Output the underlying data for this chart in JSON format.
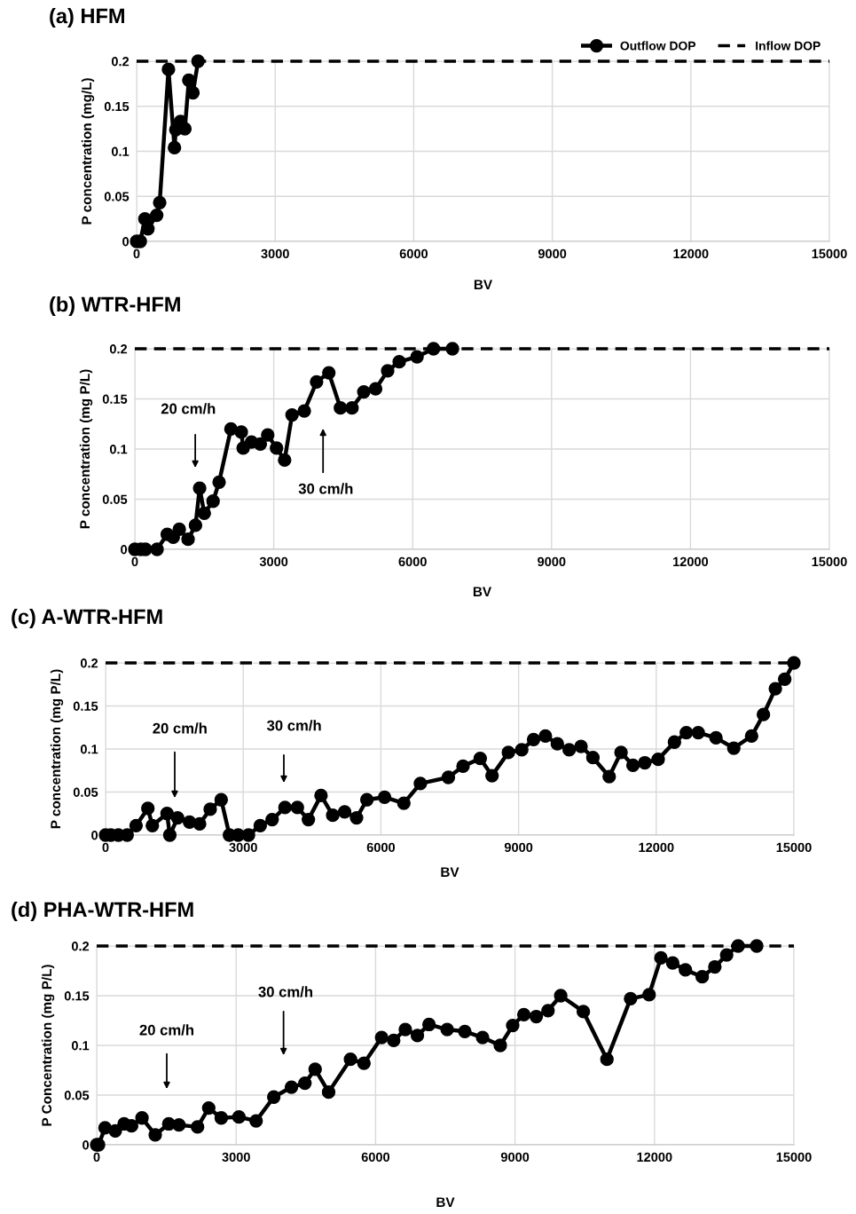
{
  "chart_data": [
    {
      "type": "line",
      "title": "(a) HFM",
      "xlabel": "BV",
      "ylabel": "P concentration (mg/L)",
      "xlim": [
        0,
        15000
      ],
      "xticks": [
        0,
        3000,
        6000,
        9000,
        12000,
        15000
      ],
      "ylim": [
        0,
        0.2
      ],
      "yticks": [
        0,
        0.05,
        0.1,
        0.15,
        0.2
      ],
      "grid": true,
      "legend": "top right",
      "series": [
        {
          "name": "Outflow DOP",
          "color": "#000000",
          "marker": "circle",
          "line_style": "solid",
          "x": [
            0,
            80,
            180,
            245,
            435,
            500,
            690,
            820,
            850,
            950,
            1045,
            1130,
            1220,
            1330
          ],
          "values": [
            0,
            0,
            0.025,
            0.014,
            0.029,
            0.043,
            0.191,
            0.104,
            0.124,
            0.133,
            0.125,
            0.179,
            0.165,
            0.2
          ]
        },
        {
          "name": "Inflow DOP",
          "color": "#000000",
          "marker": "none",
          "line_style": "dashed",
          "x": [
            0,
            15000
          ],
          "values": [
            0.2,
            0.2
          ]
        }
      ]
    },
    {
      "type": "line",
      "title": "(b) WTR-HFM",
      "xlabel": "BV",
      "ylabel": "P concentration (mg P/L)",
      "xlim": [
        0,
        15000
      ],
      "xticks": [
        0,
        3000,
        6000,
        9000,
        12000,
        15000
      ],
      "ylim": [
        0,
        0.2
      ],
      "yticks": [
        0,
        0.05,
        0.1,
        0.15,
        0.2
      ],
      "grid": true,
      "annotations": [
        "20 cm/h",
        "30 cm/h"
      ],
      "series": [
        {
          "color": "#000000",
          "marker": "circle",
          "line_style": "solid",
          "x": [
            0,
            130,
            230,
            480,
            700,
            830,
            960,
            1150,
            1310,
            1400,
            1500,
            1690,
            1820,
            2075,
            2300,
            2340,
            2520,
            2710,
            2870,
            3060,
            3235,
            3395,
            3660,
            3925,
            4190,
            4440,
            4690,
            4945,
            5200,
            5460,
            5710,
            6095,
            6450,
            6860
          ],
          "values": [
            0,
            0,
            0,
            0,
            0.015,
            0.012,
            0.02,
            0.01,
            0.024,
            0.061,
            0.036,
            0.048,
            0.067,
            0.12,
            0.117,
            0.101,
            0.107,
            0.105,
            0.114,
            0.101,
            0.089,
            0.134,
            0.138,
            0.167,
            0.176,
            0.141,
            0.141,
            0.157,
            0.16,
            0.178,
            0.187,
            0.192,
            0.2,
            0.2
          ]
        },
        {
          "color": "#000000",
          "marker": "none",
          "line_style": "dashed",
          "x": [
            0,
            15000
          ],
          "values": [
            0.2,
            0.2
          ]
        }
      ]
    },
    {
      "type": "line",
      "title": "(c) A-WTR-HFM",
      "xlabel": "BV",
      "ylabel": "P concentration (mg P/L)",
      "xlim": [
        0,
        15000
      ],
      "xticks": [
        0,
        3000,
        6000,
        9000,
        12000,
        15000
      ],
      "ylim": [
        0,
        0.2
      ],
      "yticks": [
        0,
        0.05,
        0.1,
        0.15,
        0.2
      ],
      "grid": true,
      "annotations": [
        "20 cm/h",
        "30 cm/h"
      ],
      "series": [
        {
          "color": "#000000",
          "marker": "circle",
          "line_style": "solid",
          "x": [
            0,
            115,
            280,
            470,
            665,
            922,
            1020,
            1340,
            1400,
            1570,
            1830,
            2050,
            2280,
            2520,
            2700,
            2890,
            3115,
            3370,
            3630,
            3910,
            4180,
            4420,
            4695,
            4950,
            5210,
            5470,
            5695,
            6080,
            6500,
            6860,
            7470,
            7790,
            8164,
            8422,
            8778,
            9069,
            9327,
            9585,
            9845,
            10103,
            10361,
            10620,
            10975,
            11233,
            11493,
            11751,
            12042,
            12397,
            12656,
            12915,
            13302,
            13690,
            14078,
            14336,
            14596,
            14800,
            15000
          ],
          "values": [
            0,
            0,
            0,
            0,
            0.011,
            0.031,
            0.011,
            0.025,
            0,
            0.02,
            0.015,
            0.013,
            0.03,
            0.041,
            0,
            0,
            0,
            0.011,
            0.018,
            0.032,
            0.032,
            0.018,
            0.046,
            0.023,
            0.027,
            0.02,
            0.041,
            0.044,
            0.037,
            0.06,
            0.067,
            0.08,
            0.089,
            0.069,
            0.096,
            0.099,
            0.111,
            0.115,
            0.106,
            0.099,
            0.103,
            0.09,
            0.068,
            0.096,
            0.081,
            0.084,
            0.088,
            0.108,
            0.119,
            0.119,
            0.113,
            0.101,
            0.115,
            0.14,
            0.17,
            0.181,
            0.2
          ]
        },
        {
          "color": "#000000",
          "marker": "none",
          "line_style": "dashed",
          "x": [
            0,
            15000
          ],
          "values": [
            0.2,
            0.2
          ]
        }
      ]
    },
    {
      "type": "line",
      "title": "(d) PHA-WTR-HFM",
      "xlabel": "BV",
      "ylabel": "P Concentration (mg P/L)",
      "xlim": [
        0,
        15000
      ],
      "xticks": [
        0,
        3000,
        6000,
        9000,
        12000,
        15000
      ],
      "ylim": [
        0,
        0.2
      ],
      "yticks": [
        0,
        0.05,
        0.1,
        0.15,
        0.2
      ],
      "grid": true,
      "annotations": [
        "20 cm/h",
        "30 cm/h"
      ],
      "series": [
        {
          "color": "#000000",
          "marker": "circle",
          "line_style": "solid",
          "x": [
            0,
            40,
            180,
            400,
            590,
            750,
            975,
            1260,
            1550,
            1770,
            2170,
            2410,
            2680,
            3060,
            3430,
            3810,
            4190,
            4480,
            4700,
            4990,
            5460,
            5750,
            6130,
            6390,
            6640,
            6900,
            7150,
            7540,
            7920,
            8302,
            8683,
            8950,
            9190,
            9457,
            9710,
            9983,
            10470,
            10978,
            11486,
            11885,
            12139,
            12392,
            12666,
            13027,
            13299,
            13553,
            13800,
            14200
          ],
          "values": [
            0,
            0,
            0.017,
            0.014,
            0.021,
            0.019,
            0.027,
            0.01,
            0.021,
            0.02,
            0.018,
            0.037,
            0.027,
            0.028,
            0.024,
            0.048,
            0.058,
            0.062,
            0.076,
            0.053,
            0.086,
            0.082,
            0.108,
            0.105,
            0.116,
            0.11,
            0.121,
            0.116,
            0.114,
            0.108,
            0.1,
            0.12,
            0.131,
            0.129,
            0.135,
            0.15,
            0.134,
            0.086,
            0.147,
            0.151,
            0.188,
            0.183,
            0.176,
            0.169,
            0.179,
            0.191,
            0.2,
            0.2
          ]
        },
        {
          "color": "#000000",
          "marker": "none",
          "line_style": "dashed",
          "x": [
            0,
            15000
          ],
          "values": [
            0.2,
            0.2
          ]
        }
      ]
    }
  ]
}
